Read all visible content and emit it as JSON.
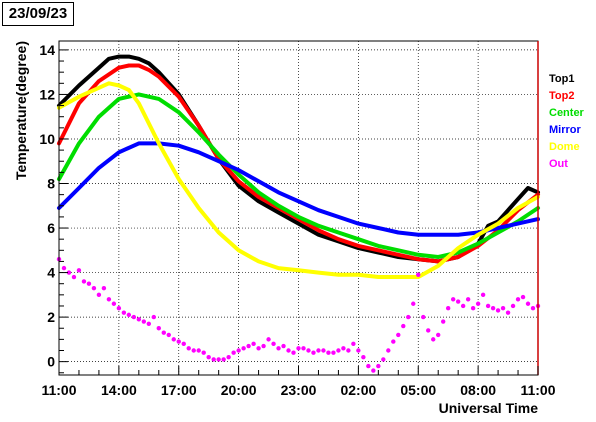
{
  "date_label": "23/09/23",
  "chart_data": {
    "type": "line",
    "title": "",
    "xlabel": "Universal Time",
    "ylabel": "Temperature(degree)",
    "xlim": [
      0,
      24
    ],
    "ylim": [
      -0.6,
      14.4
    ],
    "grid": true,
    "legend_position": "right",
    "x_ticks": [
      "11:00",
      "14:00",
      "17:00",
      "20:00",
      "23:00",
      "02:00",
      "05:00",
      "08:00",
      "11:00"
    ],
    "y_ticks": [
      0,
      2,
      4,
      6,
      8,
      10,
      12,
      14
    ],
    "series": [
      {
        "name": "Top1",
        "color": "#000000",
        "style": "line",
        "x": [
          0,
          1,
          2,
          2.5,
          3,
          3.5,
          4,
          4.5,
          5,
          6,
          7,
          8,
          9,
          10,
          11,
          12,
          13,
          14,
          15,
          16,
          17,
          18,
          19,
          20,
          21,
          21.5,
          22,
          22.5,
          23,
          23.5,
          24
        ],
        "y": [
          11.5,
          12.4,
          13.2,
          13.6,
          13.7,
          13.7,
          13.6,
          13.4,
          13.0,
          12.0,
          10.6,
          9.1,
          7.9,
          7.2,
          6.7,
          6.2,
          5.7,
          5.4,
          5.1,
          4.9,
          4.7,
          4.6,
          4.5,
          4.7,
          5.3,
          6.1,
          6.3,
          6.8,
          7.3,
          7.8,
          7.6
        ]
      },
      {
        "name": "Top2",
        "color": "#ff0000",
        "style": "line",
        "x": [
          0,
          1,
          2,
          3,
          3.5,
          4,
          4.5,
          5,
          6,
          7,
          8,
          9,
          10,
          11,
          12,
          13,
          14,
          15,
          16,
          17,
          18,
          19,
          20,
          21,
          22,
          23,
          24
        ],
        "y": [
          9.8,
          11.6,
          12.6,
          13.2,
          13.3,
          13.3,
          13.1,
          12.8,
          11.9,
          10.6,
          9.1,
          8.1,
          7.4,
          6.9,
          6.4,
          5.9,
          5.5,
          5.2,
          5.0,
          4.8,
          4.6,
          4.5,
          4.7,
          5.2,
          5.9,
          6.8,
          7.5
        ]
      },
      {
        "name": "Center",
        "color": "#00dd00",
        "style": "line",
        "x": [
          0,
          1,
          2,
          3,
          4,
          5,
          6,
          7,
          8,
          9,
          10,
          11,
          12,
          13,
          14,
          15,
          16,
          17,
          18,
          19,
          20,
          21,
          22,
          23,
          24
        ],
        "y": [
          8.2,
          9.8,
          11.0,
          11.8,
          12.0,
          11.8,
          11.2,
          10.3,
          9.3,
          8.4,
          7.6,
          7.0,
          6.5,
          6.1,
          5.8,
          5.5,
          5.2,
          5.0,
          4.8,
          4.7,
          4.9,
          5.3,
          5.8,
          6.3,
          6.9
        ]
      },
      {
        "name": "Mirror",
        "color": "#0000ff",
        "style": "line",
        "x": [
          0,
          1,
          2,
          3,
          4,
          5,
          6,
          7,
          8,
          9,
          10,
          11,
          12,
          13,
          14,
          15,
          16,
          17,
          18,
          19,
          20,
          21,
          22,
          23,
          24
        ],
        "y": [
          6.9,
          7.8,
          8.7,
          9.4,
          9.8,
          9.8,
          9.7,
          9.4,
          9.0,
          8.6,
          8.1,
          7.6,
          7.2,
          6.8,
          6.5,
          6.2,
          6.0,
          5.8,
          5.7,
          5.7,
          5.7,
          5.8,
          6.0,
          6.2,
          6.4
        ]
      },
      {
        "name": "Dome",
        "color": "#ffff00",
        "style": "line",
        "x": [
          0,
          1,
          2,
          2.5,
          3,
          3.5,
          4,
          5,
          6,
          7,
          8,
          9,
          10,
          11,
          12,
          13,
          14,
          15,
          16,
          17,
          18,
          19,
          20,
          21,
          22,
          23,
          24
        ],
        "y": [
          11.4,
          11.9,
          12.3,
          12.5,
          12.4,
          12.2,
          11.6,
          9.8,
          8.2,
          6.9,
          5.8,
          5.0,
          4.5,
          4.2,
          4.1,
          4.0,
          3.9,
          3.9,
          3.8,
          3.8,
          3.8,
          4.3,
          5.1,
          5.7,
          6.2,
          6.9,
          7.4
        ]
      },
      {
        "name": "Out",
        "color": "#ff00ff",
        "style": "markers",
        "x": [
          0,
          0.25,
          0.5,
          0.75,
          1.0,
          1.25,
          1.5,
          1.75,
          2.0,
          2.25,
          2.5,
          2.75,
          3.0,
          3.25,
          3.5,
          3.75,
          4.0,
          4.25,
          4.5,
          4.75,
          5.0,
          5.25,
          5.5,
          5.75,
          6.0,
          6.25,
          6.5,
          6.75,
          7.0,
          7.25,
          7.5,
          7.75,
          8.0,
          8.25,
          8.5,
          8.75,
          9.0,
          9.25,
          9.5,
          9.75,
          10.0,
          10.25,
          10.5,
          10.75,
          11.0,
          11.25,
          11.5,
          11.75,
          12.0,
          12.25,
          12.5,
          12.75,
          13.0,
          13.25,
          13.5,
          13.75,
          14.0,
          14.25,
          14.5,
          14.75,
          15.0,
          15.25,
          15.5,
          15.75,
          16.0,
          16.25,
          16.5,
          16.75,
          17.0,
          17.25,
          17.5,
          17.75,
          18.0,
          18.25,
          18.5,
          18.75,
          19.0,
          19.25,
          19.5,
          19.75,
          20.0,
          20.25,
          20.5,
          20.75,
          21.0,
          21.25,
          21.5,
          21.75,
          22.0,
          22.25,
          22.5,
          22.75,
          23.0,
          23.25,
          23.5,
          23.75,
          24.0
        ],
        "y": [
          4.6,
          4.2,
          4.0,
          3.8,
          4.1,
          3.6,
          3.5,
          3.3,
          3.0,
          3.3,
          2.8,
          2.6,
          2.4,
          2.2,
          2.1,
          2.0,
          1.9,
          1.8,
          1.7,
          2.0,
          1.5,
          1.3,
          1.2,
          1.0,
          0.9,
          0.8,
          0.6,
          0.5,
          0.5,
          0.4,
          0.2,
          0.1,
          0.1,
          0.1,
          0.2,
          0.4,
          0.5,
          0.6,
          0.7,
          0.8,
          0.6,
          0.7,
          1.0,
          0.8,
          0.6,
          0.7,
          0.5,
          0.4,
          0.6,
          0.6,
          0.5,
          0.4,
          0.5,
          0.5,
          0.4,
          0.4,
          0.5,
          0.6,
          0.5,
          0.8,
          0.5,
          0.2,
          -0.2,
          -0.4,
          -0.2,
          0.1,
          0.5,
          0.9,
          1.2,
          1.6,
          2.0,
          2.6,
          3.9,
          2.0,
          1.4,
          1.0,
          1.2,
          1.8,
          2.4,
          2.8,
          2.7,
          2.5,
          2.8,
          2.4,
          2.6,
          3.0,
          2.5,
          2.4,
          2.3,
          2.4,
          2.2,
          2.5,
          2.8,
          2.9,
          2.6,
          2.4,
          2.5
        ]
      }
    ]
  }
}
